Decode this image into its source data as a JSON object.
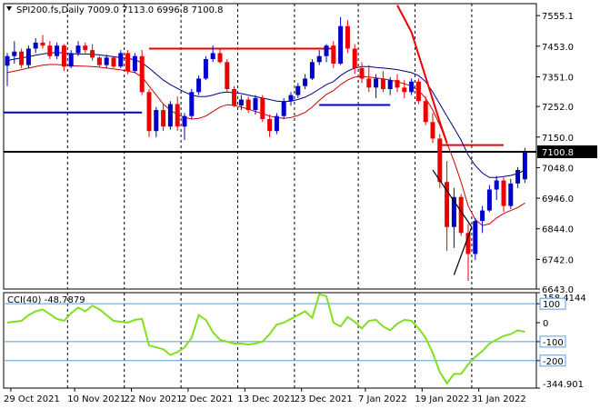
{
  "window": {
    "symbol_header": "SPI200.fs,Daily  7009.0 7113.0 6996.8 7100.8",
    "cci_header": "CCI(40) -48.7879"
  },
  "colors": {
    "background": "#ffffff",
    "bull_candle": "#0000cc",
    "bear_candle": "#ee0000",
    "ma_navy": "#000080",
    "ma_red": "#cc0000",
    "cci_line": "#7fe01f",
    "cci_level_line": "#5b9bd5",
    "current_price_bg": "#000000",
    "current_price_text": "#ffffff"
  },
  "chart_data": [
    {
      "type": "candlestick",
      "title": "SPI200.fs,Daily",
      "ohlc_header": {
        "open": 7009.0,
        "high": 7113.0,
        "low": 6996.8,
        "close": 7100.8
      },
      "current_price": 7100.8,
      "ylim": [
        6643.0,
        7595.0
      ],
      "y_ticks": [
        7555.1,
        7453.0,
        7351.0,
        7252.0,
        7150.0,
        7048.0,
        6946.0,
        6844.0,
        6742.0,
        6643.0
      ],
      "x_labels": [
        {
          "label": "29 Oct 2021",
          "index": 0
        },
        {
          "label": "10 Nov 2021",
          "index": 9
        },
        {
          "label": "22 Nov 2021",
          "index": 17
        },
        {
          "label": "2 Dec 2021",
          "index": 25
        },
        {
          "label": "13 Dec 2021",
          "index": 33
        },
        {
          "label": "23 Dec 2021",
          "index": 41
        },
        {
          "label": "7 Jan 2022",
          "index": 50
        },
        {
          "label": "19 Jan 2022",
          "index": 58
        },
        {
          "label": "31 Jan 2022",
          "index": 66
        }
      ],
      "vgrid_indices": [
        8,
        16,
        24,
        32,
        40,
        49,
        57,
        65
      ],
      "candles": [
        [
          7388,
          7430,
          7320,
          7420
        ],
        [
          7420,
          7470,
          7395,
          7435
        ],
        [
          7435,
          7445,
          7380,
          7390
        ],
        [
          7390,
          7455,
          7380,
          7445
        ],
        [
          7445,
          7480,
          7430,
          7465
        ],
        [
          7465,
          7490,
          7445,
          7455
        ],
        [
          7455,
          7470,
          7410,
          7420
        ],
        [
          7420,
          7465,
          7410,
          7455
        ],
        [
          7455,
          7460,
          7370,
          7385
        ],
        [
          7385,
          7440,
          7380,
          7430
        ],
        [
          7430,
          7470,
          7420,
          7455
        ],
        [
          7455,
          7465,
          7430,
          7440
        ],
        [
          7440,
          7460,
          7405,
          7415
        ],
        [
          7415,
          7420,
          7385,
          7390
        ],
        [
          7390,
          7425,
          7380,
          7415
        ],
        [
          7415,
          7420,
          7380,
          7385
        ],
        [
          7385,
          7440,
          7380,
          7430
        ],
        [
          7430,
          7440,
          7360,
          7370
        ],
        [
          7370,
          7430,
          7365,
          7420
        ],
        [
          7420,
          7440,
          7290,
          7300
        ],
        [
          7300,
          7310,
          7150,
          7170
        ],
        [
          7170,
          7250,
          7150,
          7240
        ],
        [
          7240,
          7260,
          7170,
          7185
        ],
        [
          7185,
          7270,
          7175,
          7260
        ],
        [
          7260,
          7285,
          7170,
          7185
        ],
        [
          7185,
          7230,
          7140,
          7220
        ],
        [
          7220,
          7310,
          7210,
          7300
        ],
        [
          7300,
          7355,
          7290,
          7345
        ],
        [
          7345,
          7420,
          7340,
          7410
        ],
        [
          7410,
          7455,
          7400,
          7430
        ],
        [
          7430,
          7445,
          7395,
          7400
        ],
        [
          7400,
          7410,
          7300,
          7310
        ],
        [
          7310,
          7320,
          7250,
          7255
        ],
        [
          7255,
          7290,
          7240,
          7275
        ],
        [
          7275,
          7285,
          7230,
          7240
        ],
        [
          7240,
          7290,
          7225,
          7280
        ],
        [
          7280,
          7290,
          7200,
          7210
        ],
        [
          7210,
          7225,
          7150,
          7170
        ],
        [
          7170,
          7230,
          7160,
          7220
        ],
        [
          7220,
          7280,
          7210,
          7270
        ],
        [
          7270,
          7300,
          7255,
          7290
        ],
        [
          7290,
          7330,
          7280,
          7320
        ],
        [
          7320,
          7360,
          7310,
          7345
        ],
        [
          7345,
          7410,
          7340,
          7400
        ],
        [
          7400,
          7440,
          7390,
          7420
        ],
        [
          7420,
          7460,
          7400,
          7455
        ],
        [
          7455,
          7470,
          7380,
          7395
        ],
        [
          7395,
          7550,
          7390,
          7520
        ],
        [
          7520,
          7540,
          7430,
          7445
        ],
        [
          7445,
          7460,
          7360,
          7380
        ],
        [
          7380,
          7400,
          7330,
          7345
        ],
        [
          7345,
          7390,
          7300,
          7315
        ],
        [
          7315,
          7360,
          7280,
          7345
        ],
        [
          7345,
          7370,
          7300,
          7310
        ],
        [
          7310,
          7350,
          7290,
          7340
        ],
        [
          7340,
          7360,
          7300,
          7315
        ],
        [
          7315,
          7340,
          7280,
          7300
        ],
        [
          7300,
          7345,
          7290,
          7335
        ],
        [
          7335,
          7345,
          7260,
          7270
        ],
        [
          7270,
          7285,
          7190,
          7200
        ],
        [
          7200,
          7230,
          7130,
          7145
        ],
        [
          7145,
          7160,
          6980,
          7000
        ],
        [
          7000,
          7070,
          6770,
          6850
        ],
        [
          6850,
          6980,
          6780,
          6950
        ],
        [
          6950,
          6960,
          6820,
          6830
        ],
        [
          6830,
          6860,
          6670,
          6760
        ],
        [
          6760,
          6880,
          6740,
          6870
        ],
        [
          6870,
          6920,
          6830,
          6905
        ],
        [
          6905,
          6990,
          6900,
          6975
        ],
        [
          6975,
          7020,
          6940,
          7005
        ],
        [
          7005,
          7015,
          6900,
          6920
        ],
        [
          6920,
          7010,
          6910,
          6995
        ],
        [
          6995,
          7050,
          6980,
          7040
        ],
        [
          7009,
          7113,
          6997,
          7100.8
        ]
      ],
      "ma_navy": [
        7405,
        7410,
        7414,
        7418,
        7423,
        7427,
        7430,
        7432,
        7430,
        7428,
        7427,
        7427,
        7426,
        7424,
        7421,
        7418,
        7415,
        7412,
        7408,
        7398,
        7380,
        7360,
        7340,
        7325,
        7312,
        7300,
        7290,
        7285,
        7285,
        7290,
        7297,
        7300,
        7298,
        7295,
        7290,
        7285,
        7280,
        7275,
        7270,
        7268,
        7270,
        7275,
        7283,
        7295,
        7310,
        7325,
        7335,
        7355,
        7370,
        7380,
        7385,
        7385,
        7382,
        7380,
        7378,
        7375,
        7370,
        7365,
        7355,
        7335,
        7300,
        7260,
        7220,
        7180,
        7140,
        7090,
        7055,
        7030,
        7015,
        7015,
        7018,
        7022,
        7028,
        7040
      ],
      "ma_red": [
        7365,
        7370,
        7375,
        7380,
        7385,
        7390,
        7392,
        7392,
        7390,
        7388,
        7387,
        7386,
        7385,
        7383,
        7380,
        7377,
        7374,
        7370,
        7365,
        7350,
        7320,
        7290,
        7260,
        7240,
        7225,
        7215,
        7210,
        7212,
        7220,
        7235,
        7250,
        7258,
        7255,
        7250,
        7243,
        7235,
        7228,
        7220,
        7215,
        7212,
        7215,
        7222,
        7232,
        7250,
        7272,
        7292,
        7305,
        7325,
        7340,
        7350,
        7352,
        7350,
        7347,
        7344,
        7340,
        7335,
        7328,
        7320,
        7305,
        7280,
        7240,
        7190,
        7130,
        7070,
        7000,
        6920,
        6875,
        6855,
        6860,
        6880,
        6895,
        6905,
        6915,
        6930
      ],
      "sar_line": [
        [
          55,
          7590
        ],
        [
          57,
          7500
        ],
        [
          59,
          7350
        ],
        [
          61,
          7200
        ],
        [
          62,
          7130
        ]
      ],
      "horizontal_levels": [
        {
          "price": 7232,
          "from": 0,
          "to": 19,
          "color": "#0000cc",
          "width": 2
        },
        {
          "price": 7445,
          "from": 20,
          "to": 46,
          "color": "#ee0000",
          "width": 2
        },
        {
          "price": 7257,
          "from": 44,
          "to": 54,
          "color": "#0000cc",
          "width": 2
        },
        {
          "price": 7123,
          "from": 61,
          "to": 70,
          "color": "#ee0000",
          "width": 2
        },
        {
          "price": 7100.8,
          "from": 0,
          "to": 74,
          "color": "#000000",
          "width": 2
        }
      ],
      "trend_lines": [
        {
          "from": [
            60,
            7040
          ],
          "to": [
            65.5,
            6850
          ],
          "color": "#000000"
        },
        {
          "from": [
            63,
            6690
          ],
          "to": [
            65.5,
            6850
          ],
          "color": "#000000"
        }
      ]
    },
    {
      "type": "line",
      "title": "CCI(40) -48.7879",
      "ylim": [
        -344.901,
        158.4144
      ],
      "y_ticks": [
        158.4144,
        100,
        0,
        -100,
        -200,
        -344.901
      ],
      "boxed_ticks": [
        100,
        -100,
        -200
      ],
      "levels": [
        100,
        -100,
        -200
      ],
      "series": [
        {
          "values": [
            0,
            5,
            10,
            40,
            60,
            70,
            45,
            20,
            10,
            50,
            80,
            60,
            90,
            70,
            40,
            10,
            5,
            0,
            15,
            20,
            -120,
            -130,
            -140,
            -170,
            -155,
            -130,
            -80,
            40,
            15,
            -50,
            -90,
            -100,
            -110,
            -110,
            -115,
            -110,
            -100,
            -60,
            -10,
            0,
            20,
            40,
            60,
            25,
            150,
            140,
            0,
            -20,
            30,
            5,
            -30,
            10,
            15,
            -20,
            -40,
            -5,
            15,
            10,
            -30,
            -80,
            -160,
            -260,
            -320,
            -270,
            -270,
            -220,
            -180,
            -150,
            -110,
            -90,
            -70,
            -60,
            -40,
            -48.79
          ]
        }
      ]
    }
  ]
}
